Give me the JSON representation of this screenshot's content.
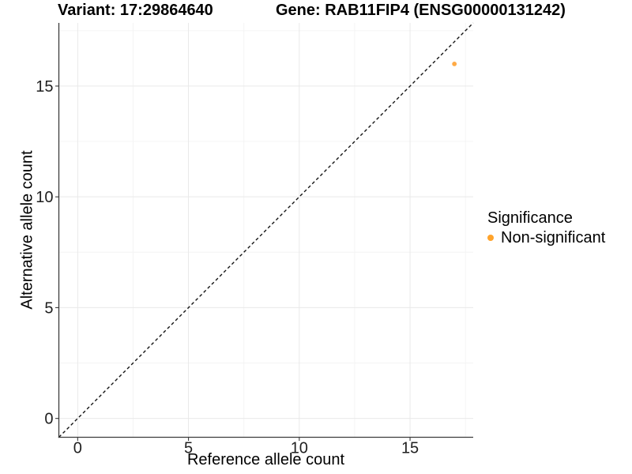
{
  "chart_data": {
    "type": "scatter",
    "titles": {
      "variant": "Variant: 17:29864640",
      "gene": "Gene: RAB11FIP4 (ENSG00000131242)"
    },
    "xlabel": "Reference allele count",
    "ylabel": "Alternative allele count",
    "xlim": [
      -0.85,
      17.85
    ],
    "ylim": [
      -0.85,
      17.85
    ],
    "x_major_ticks": [
      0,
      5,
      10,
      15
    ],
    "y_major_ticks": [
      0,
      5,
      10,
      15
    ],
    "x_minor_ticks": [
      2.5,
      7.5,
      12.5,
      17.5
    ],
    "y_minor_ticks": [
      2.5,
      7.5,
      12.5,
      17.5
    ],
    "grid": "on",
    "identity_line": {
      "style": "dashed",
      "color": "#141414",
      "equation": "y = x"
    },
    "points": [
      {
        "x": 17,
        "y": 16,
        "series": "Non-significant"
      }
    ],
    "legend": {
      "title": "Significance",
      "position": "right",
      "entries": [
        {
          "label": "Non-significant",
          "color": "#ffa32b"
        }
      ]
    },
    "colors": {
      "background": "#ffffff",
      "grid_major": "#e9e9e9",
      "grid_minor": "#f4f4f4",
      "axis_line": "#3c3c3c",
      "tick_label": "#1f1f1f",
      "point": "#ffaa45"
    }
  }
}
